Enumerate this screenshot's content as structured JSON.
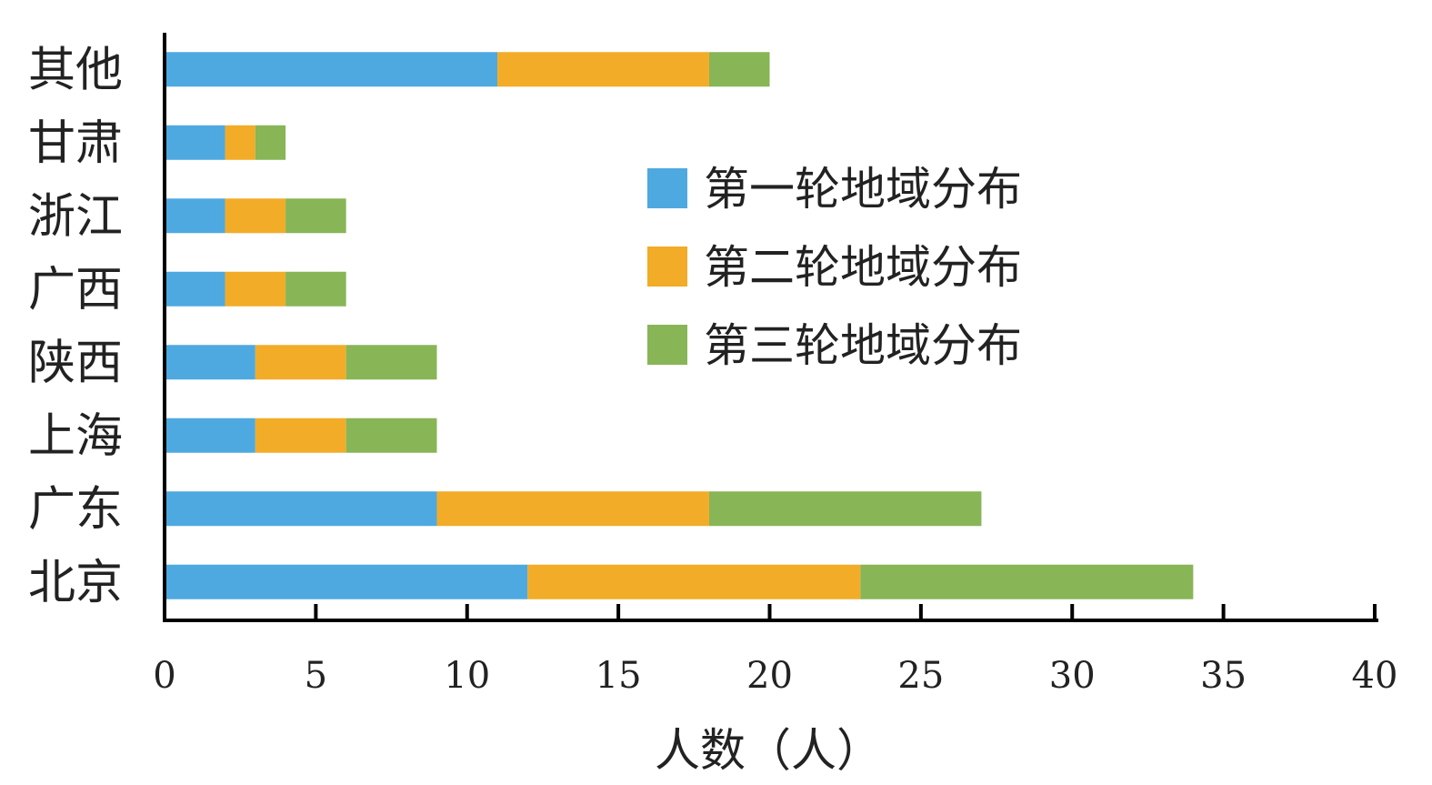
{
  "chart_data": {
    "type": "bar",
    "orientation": "horizontal",
    "stacked": true,
    "categories": [
      "其他",
      "甘肃",
      "浙江",
      "广西",
      "陕西",
      "上海",
      "广东",
      "北京"
    ],
    "series": [
      {
        "name": "第一轮地域分布",
        "color": "#4EA9E0",
        "values": [
          11,
          2,
          2,
          2,
          3,
          3,
          9,
          12
        ]
      },
      {
        "name": "第二轮地域分布",
        "color": "#F2AC27",
        "values": [
          7,
          1,
          2,
          2,
          3,
          3,
          9,
          11
        ]
      },
      {
        "name": "第三轮地域分布",
        "color": "#88B556",
        "values": [
          2,
          1,
          2,
          2,
          3,
          3,
          9,
          11
        ]
      }
    ],
    "xlabel": "人数（人）",
    "ylabel": "",
    "xlim": [
      0,
      40
    ],
    "xticks": [
      "0",
      "5",
      "10",
      "15",
      "20",
      "25",
      "30",
      "35",
      "40"
    ],
    "grid": false,
    "legend_position": "right"
  }
}
